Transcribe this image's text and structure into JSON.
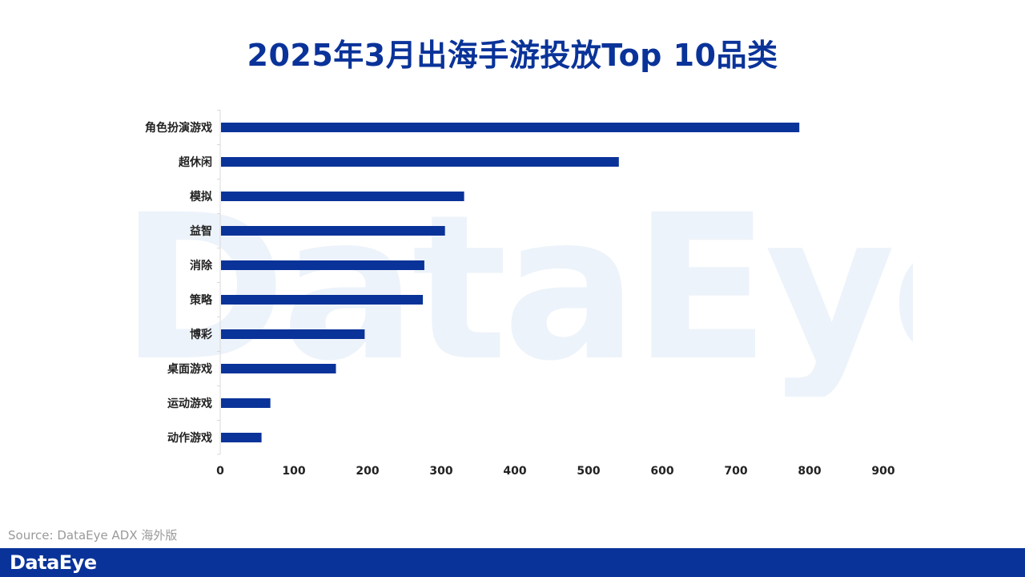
{
  "watermark": "DataEye",
  "chart_data": {
    "type": "bar",
    "orientation": "horizontal",
    "title": "2025年3月出海手游投放Top 10品类",
    "categories": [
      "角色扮演游戏",
      "超休闲",
      "模拟",
      "益智",
      "消除",
      "策略",
      "博彩",
      "桌面游戏",
      "运动游戏",
      "动作游戏"
    ],
    "values": [
      785,
      540,
      330,
      304,
      276,
      274,
      195,
      156,
      67,
      55
    ],
    "xlim": [
      0,
      900
    ],
    "xticks": [
      "0",
      "100",
      "200",
      "300",
      "400",
      "500",
      "600",
      "700",
      "800",
      "900"
    ],
    "grid": false,
    "bar_color": "#0a3399"
  },
  "source": "Source: DataEye ADX 海外版",
  "footer": {
    "logo": "DataEye",
    "background": "#0a3399"
  }
}
